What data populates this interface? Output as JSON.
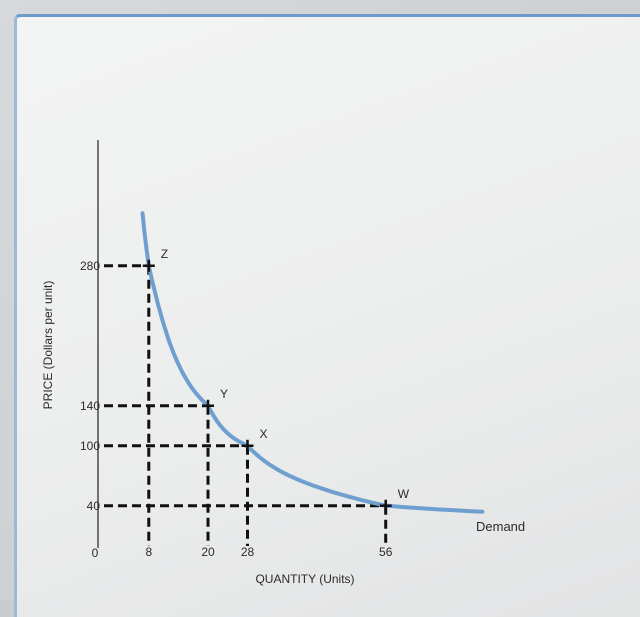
{
  "chart_data": {
    "type": "line",
    "xlabel": "QUANTITY (Units)",
    "ylabel": "PRICE (Dollars per unit)",
    "origin_label": "0",
    "x_ticks": [
      "8",
      "20",
      "28",
      "56"
    ],
    "y_ticks": [
      "280",
      "140",
      "100",
      "40"
    ],
    "series": [
      {
        "name": "Demand",
        "x": [
          8,
          20,
          28,
          56
        ],
        "y": [
          280,
          140,
          100,
          40
        ]
      }
    ],
    "points": [
      {
        "label": "Z",
        "x": 8,
        "y": 280
      },
      {
        "label": "Y",
        "x": 20,
        "y": 140
      },
      {
        "label": "X",
        "x": 28,
        "y": 100
      },
      {
        "label": "W",
        "x": 56,
        "y": 40
      }
    ],
    "curve_color": "#6f9fcf"
  }
}
